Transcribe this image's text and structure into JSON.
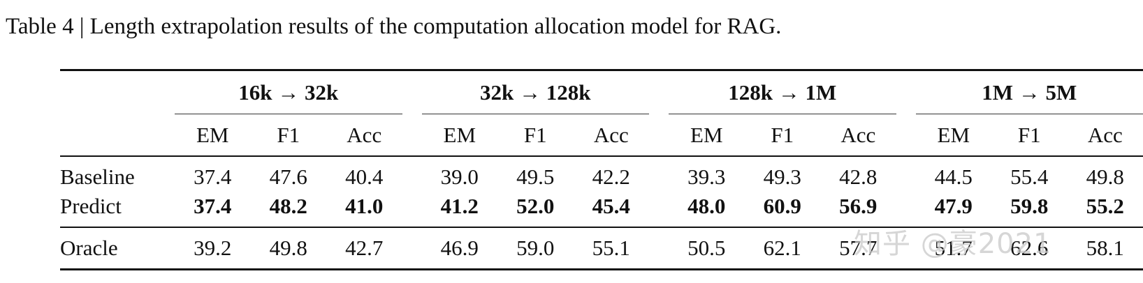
{
  "caption": "Table 4 | Length extrapolation results of the computation allocation model for RAG.",
  "groups": [
    "16k → 32k",
    "32k → 128k",
    "128k → 1M",
    "1M → 5M"
  ],
  "metrics": [
    "EM",
    "F1",
    "Acc"
  ],
  "rows": [
    {
      "label": "Baseline",
      "values": [
        "37.4",
        "47.6",
        "40.4",
        "39.0",
        "49.5",
        "42.2",
        "39.3",
        "49.3",
        "42.8",
        "44.5",
        "55.4",
        "49.8"
      ],
      "bold": false
    },
    {
      "label": "Predict",
      "values": [
        "37.4",
        "48.2",
        "41.0",
        "41.2",
        "52.0",
        "45.4",
        "48.0",
        "60.9",
        "56.9",
        "47.9",
        "59.8",
        "55.2"
      ],
      "bold": true
    },
    {
      "label": "Oracle",
      "values": [
        "39.2",
        "49.8",
        "42.7",
        "46.9",
        "59.0",
        "55.1",
        "50.5",
        "62.1",
        "57.7",
        "51.7",
        "62.6",
        "58.1"
      ],
      "bold": false
    }
  ],
  "watermark": "知乎 @豪2021"
}
